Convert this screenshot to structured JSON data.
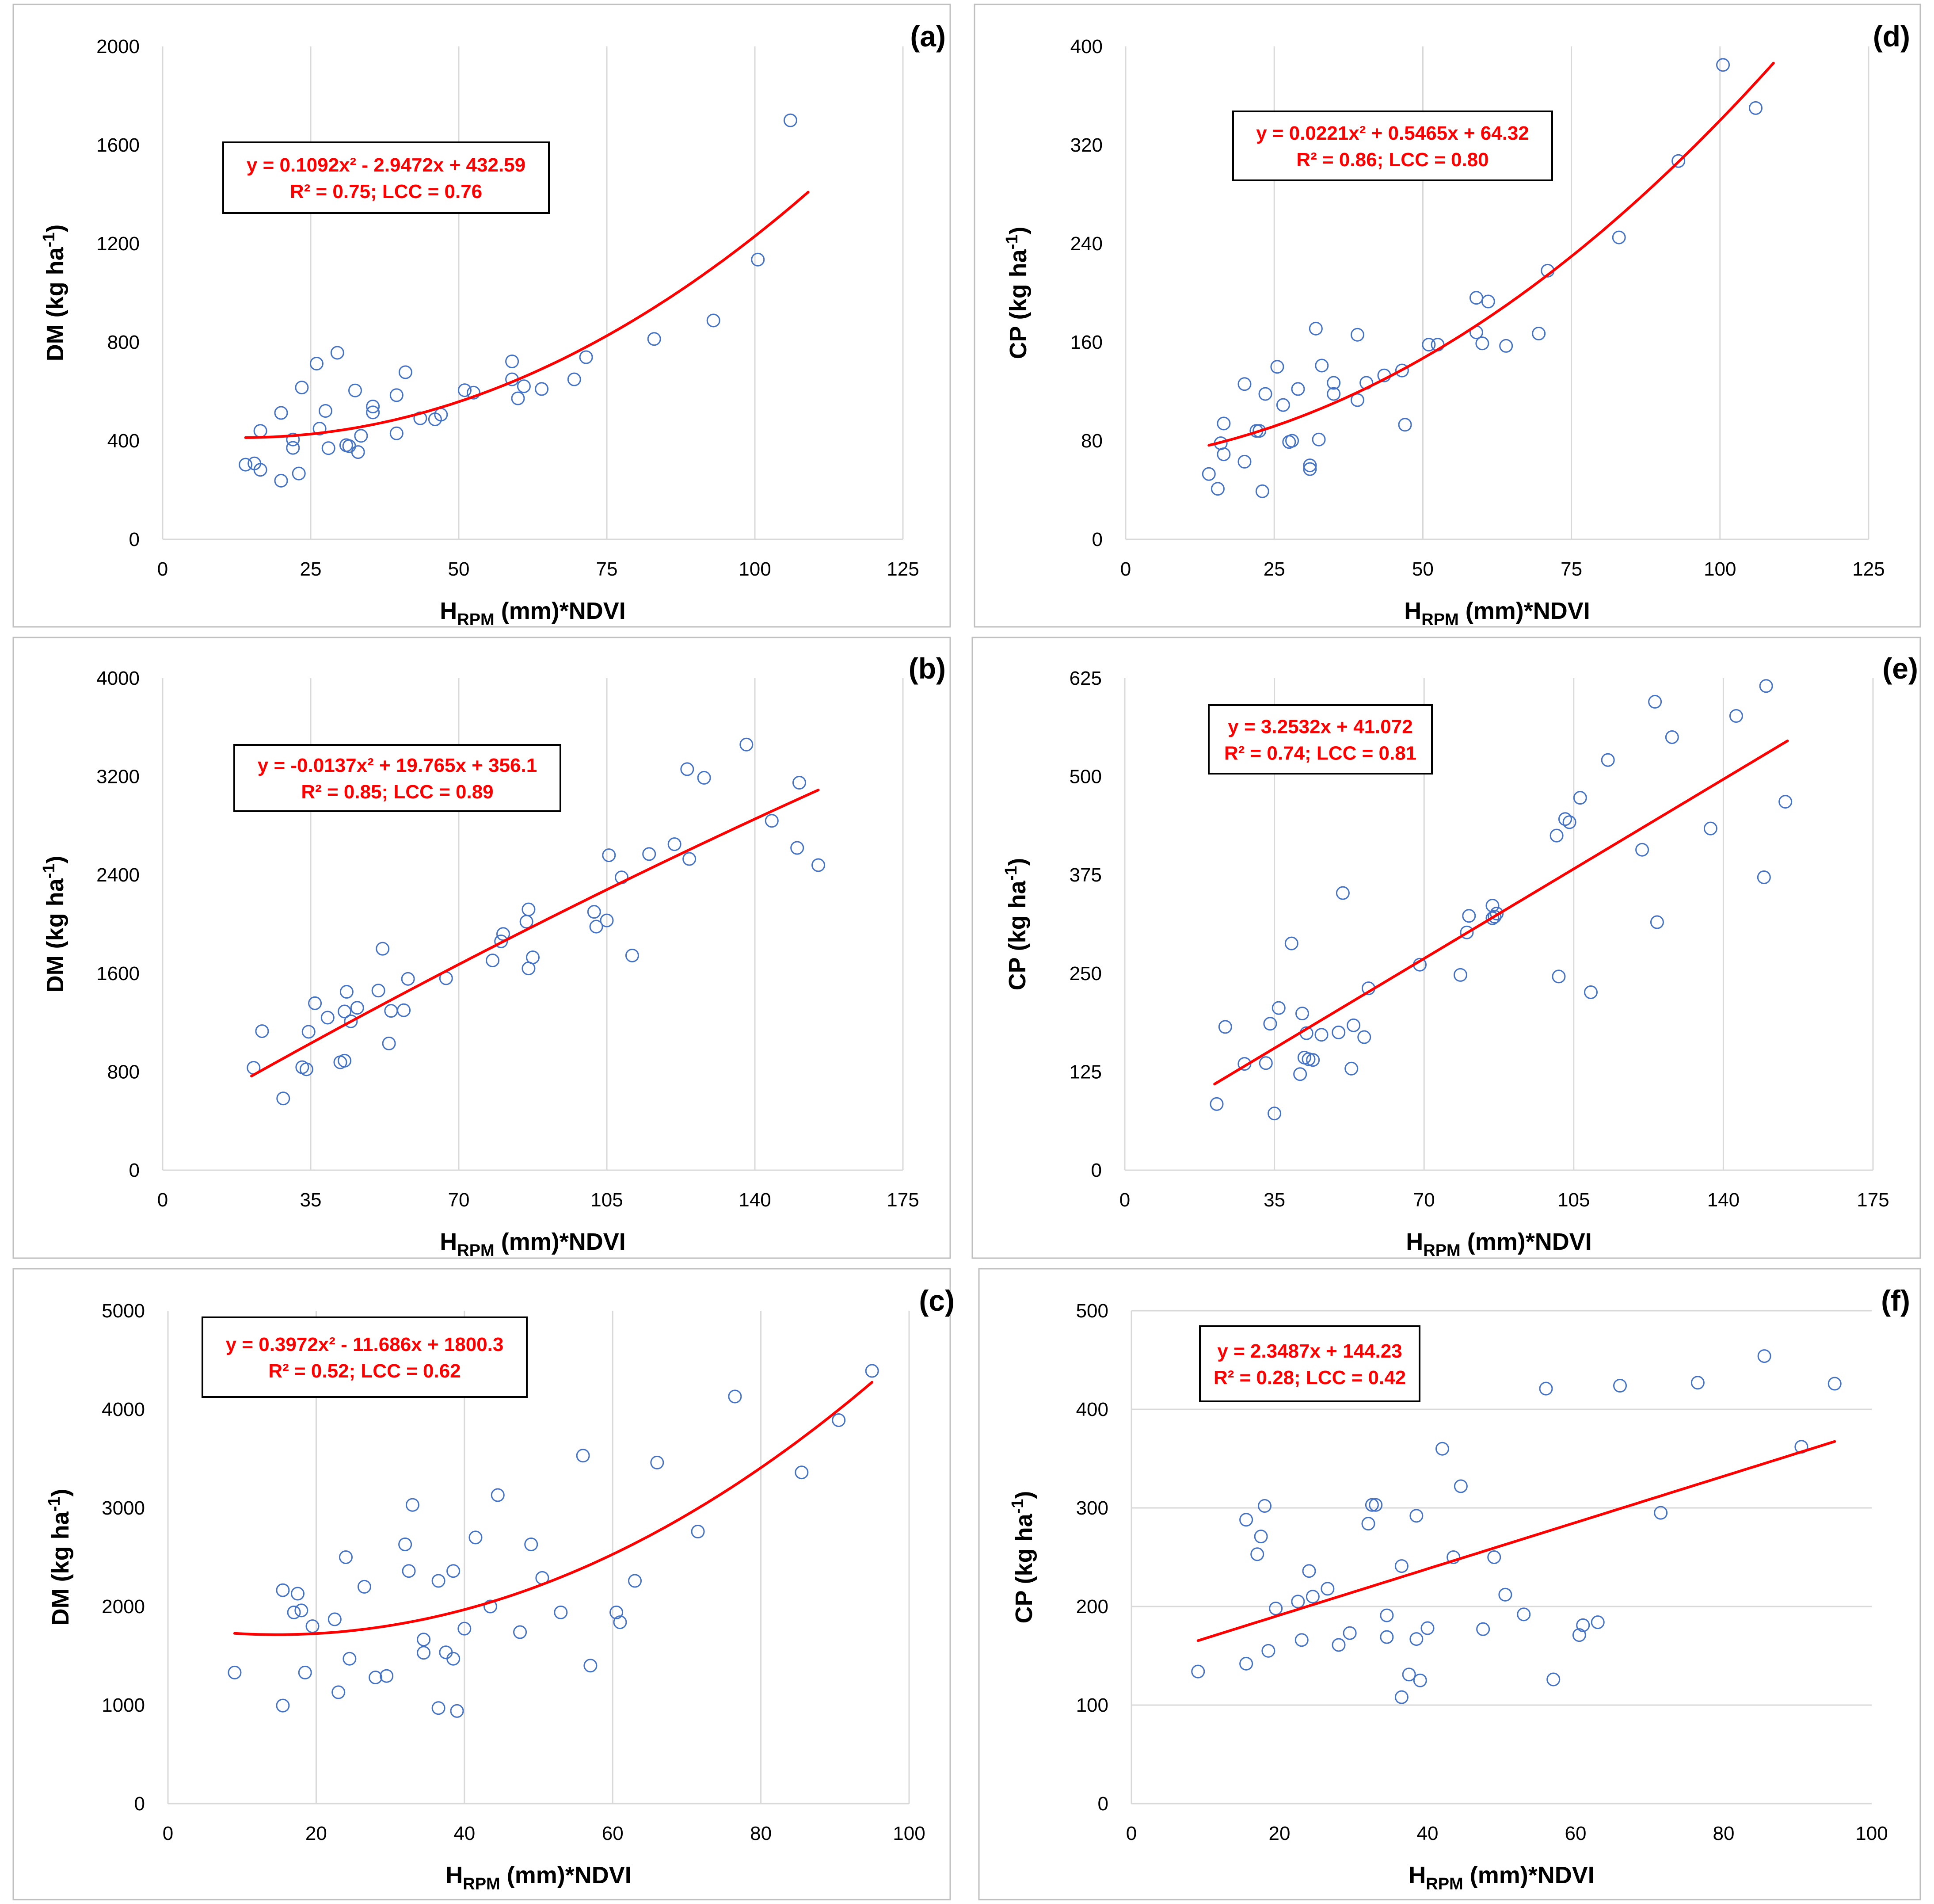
{
  "colors": {
    "points": "#4472c4",
    "fit": "#ff0000",
    "grid": "#d9d9d9",
    "frame": "#bfbfbf"
  },
  "chart_data": [
    {
      "id": "a",
      "type": "scatter",
      "panel_label": "(a)",
      "xlabel_main": "H",
      "xlabel_sub": "RPM",
      "xlabel_rest": " (mm)*NDVI",
      "ylabel": "DM (kg ha",
      "ylabel_sup": "-1",
      "ylabel_end": ")",
      "xlim": [
        0,
        125
      ],
      "xticks": [
        0,
        25,
        50,
        75,
        100,
        125
      ],
      "ylim": [
        0,
        2000
      ],
      "yticks": [
        0,
        400,
        800,
        1200,
        1600,
        2000
      ],
      "grid": "vertical",
      "fit": {
        "type": "poly2",
        "a": 0.1092,
        "b": -2.9472,
        "c": 432.59,
        "xrange": [
          14,
          109
        ]
      },
      "equation": "y = 0.1092x² - 2.9472x + 432.59",
      "stats": "R² = 0.75; LCC = 0.76",
      "x": [
        14,
        15.5,
        16.5,
        16.5,
        20,
        20,
        22,
        22,
        23,
        23.5,
        26,
        26.5,
        27.5,
        28,
        29.5,
        31,
        31.5,
        32.5,
        33,
        33.5,
        35.5,
        35.5,
        39.5,
        39.5,
        41,
        43.5,
        46,
        47,
        51,
        52.5,
        59,
        59,
        60,
        61,
        64,
        69.5,
        71.5,
        83,
        93,
        100.5,
        106
      ],
      "y": [
        303,
        308,
        282,
        440,
        238,
        513,
        371,
        405,
        267,
        616,
        713,
        449,
        521,
        370,
        757,
        382,
        378,
        604,
        354,
        420,
        515,
        539,
        430,
        585,
        678,
        491,
        487,
        506,
        605,
        595,
        649,
        722,
        572,
        621,
        610,
        649,
        739,
        813,
        888,
        1135,
        1700
      ]
    },
    {
      "id": "b",
      "type": "scatter",
      "panel_label": "(b)",
      "xlabel_main": "H",
      "xlabel_sub": "RPM",
      "xlabel_rest": " (mm)*NDVI",
      "ylabel": "DM (kg ha",
      "ylabel_sup": "-1",
      "ylabel_end": ")",
      "xlim": [
        0,
        175
      ],
      "xticks": [
        0,
        35,
        70,
        105,
        140,
        175
      ],
      "ylim": [
        0,
        4000
      ],
      "yticks": [
        0,
        800,
        1600,
        2400,
        3200,
        4000
      ],
      "grid": "vertical",
      "fit": {
        "type": "poly2",
        "a": -0.0137,
        "b": 19.765,
        "c": 356.1,
        "xrange": [
          21,
          155
        ]
      },
      "equation": "y = -0.0137x² + 19.765x + 356.1",
      "stats": "R² = 0.85; LCC = 0.89",
      "x": [
        21.5,
        23.5,
        28.5,
        33,
        34,
        34.5,
        36,
        39,
        42,
        43,
        43,
        43.5,
        44.5,
        46,
        51,
        52,
        53.5,
        54,
        57,
        58,
        67,
        78,
        80,
        80.5,
        86,
        86.5,
        86.5,
        87.5,
        102,
        102.5,
        105,
        105.5,
        108.5,
        111,
        115,
        121,
        124,
        124.5,
        128,
        138,
        144,
        150,
        150.5,
        155
      ],
      "y": [
        832,
        1130,
        583,
        837,
        820,
        1125,
        1357,
        1240,
        877,
        890,
        1290,
        1450,
        1210,
        1320,
        1460,
        1800,
        1030,
        1295,
        1300,
        1555,
        1560,
        1705,
        1860,
        1920,
        2020,
        2120,
        1640,
        1730,
        2100,
        1980,
        2030,
        2560,
        2380,
        1745,
        2570,
        2650,
        3260,
        2530,
        3190,
        3460,
        2840,
        2620,
        3150,
        2480
      ]
    },
    {
      "id": "c",
      "type": "scatter",
      "panel_label": "(c)",
      "xlabel_main": "H",
      "xlabel_sub": "RPM",
      "xlabel_rest": " (mm)*NDVI",
      "ylabel": "DM (kg ha",
      "ylabel_sup": "-1",
      "ylabel_end": ")",
      "xlim": [
        0,
        100
      ],
      "xticks": [
        0,
        20,
        40,
        60,
        80,
        100
      ],
      "ylim": [
        0,
        5000
      ],
      "yticks": [
        0,
        1000,
        2000,
        3000,
        4000,
        5000
      ],
      "grid": "vertical",
      "fit": {
        "type": "poly2",
        "a": 0.3972,
        "b": -11.686,
        "c": 1800.3,
        "xrange": [
          9,
          95
        ]
      },
      "equation": "y = 0.3972x² - 11.686x + 1800.3",
      "stats": "R² = 0.52; LCC = 0.62",
      "x": [
        9,
        15.5,
        15.5,
        17,
        17.5,
        18,
        18.5,
        19.5,
        22.5,
        23,
        24,
        24.5,
        26.5,
        28,
        29.5,
        32,
        32.5,
        33,
        34.5,
        34.5,
        36.5,
        36.5,
        37.5,
        38.5,
        38.5,
        39,
        40,
        41.5,
        43.5,
        44.5,
        47.5,
        49,
        50.5,
        53,
        56,
        57,
        60.5,
        61,
        63,
        66,
        71.5,
        76.5,
        85.5,
        90.5,
        95
      ],
      "y": [
        1330,
        995,
        2165,
        1940,
        2130,
        1960,
        1330,
        1800,
        1870,
        1130,
        2500,
        1470,
        2200,
        1280,
        1295,
        2630,
        2360,
        3030,
        1665,
        1530,
        2260,
        970,
        1535,
        1470,
        2360,
        940,
        1775,
        2700,
        2000,
        3130,
        1740,
        2630,
        2290,
        1940,
        3530,
        1400,
        1940,
        1840,
        2260,
        3460,
        2760,
        4130,
        3360,
        3890,
        4390
      ]
    },
    {
      "id": "d",
      "type": "scatter",
      "panel_label": "(d)",
      "xlabel_main": "H",
      "xlabel_sub": "RPM",
      "xlabel_rest": " (mm)*NDVI",
      "ylabel": "CP (kg ha",
      "ylabel_sup": "-1",
      "ylabel_end": ")",
      "xlim": [
        0,
        125
      ],
      "xticks": [
        0,
        25,
        50,
        75,
        100,
        125
      ],
      "ylim": [
        0,
        400
      ],
      "yticks": [
        0,
        80,
        160,
        240,
        320,
        400
      ],
      "grid": "vertical",
      "fit": {
        "type": "poly2",
        "a": 0.0221,
        "b": 0.5465,
        "c": 64.32,
        "xrange": [
          14,
          109
        ]
      },
      "equation": "y = 0.0221x² + 0.5465x + 64.32",
      "stats": "R² = 0.86; LCC = 0.80",
      "x": [
        14,
        15.5,
        16,
        16.5,
        16.5,
        20,
        20,
        22,
        22.5,
        23,
        23.5,
        25.5,
        26.5,
        27.5,
        28,
        29,
        31,
        31,
        32,
        32.5,
        33,
        35,
        35,
        39,
        39,
        40.5,
        43.5,
        46.5,
        47,
        51,
        52.5,
        59,
        59,
        60,
        61,
        64,
        69.5,
        71,
        83,
        93,
        100.5,
        106
      ],
      "y": [
        53,
        41,
        78,
        69,
        94,
        63,
        126,
        88,
        88,
        39,
        118,
        140,
        109,
        79,
        80,
        122,
        60,
        57,
        171,
        81,
        141,
        118,
        127,
        113,
        166,
        127,
        133,
        137,
        93,
        158,
        158,
        168,
        196,
        159,
        193,
        157,
        167,
        218,
        245,
        307,
        385,
        350
      ]
    },
    {
      "id": "e",
      "type": "scatter",
      "panel_label": "(e)",
      "xlabel_main": "H",
      "xlabel_sub": "RPM",
      "xlabel_rest": " (mm)*NDVI",
      "ylabel": "CP (kg ha",
      "ylabel_sup": "-1",
      "ylabel_end": ")",
      "xlim": [
        0,
        175
      ],
      "xticks": [
        0,
        35,
        70,
        105,
        140,
        175
      ],
      "ylim": [
        0,
        625
      ],
      "yticks": [
        0,
        125,
        250,
        375,
        500,
        625
      ],
      "grid": "vertical",
      "fit": {
        "type": "linear",
        "a": 3.2532,
        "b": 41.072,
        "xrange": [
          21,
          155
        ]
      },
      "equation": "y = 3.2532x + 41.072",
      "stats": "R² = 0.74; LCC = 0.81",
      "x": [
        21.5,
        23.5,
        28,
        33,
        34,
        35,
        36,
        39,
        41,
        41.5,
        42,
        42.5,
        43,
        44,
        46,
        50,
        51,
        53,
        53.5,
        56,
        57,
        69,
        78.5,
        80,
        80.5,
        86,
        86,
        86.5,
        87,
        101,
        101.5,
        103,
        104,
        106.5,
        109,
        113,
        121,
        124,
        124.5,
        128,
        137,
        143,
        149.5,
        150,
        154.5
      ],
      "y": [
        84,
        182,
        135,
        136,
        186,
        72,
        206,
        288,
        122,
        199,
        143,
        174,
        141,
        140,
        172,
        175,
        352,
        129,
        184,
        169,
        231,
        261,
        248,
        302,
        323,
        320,
        336,
        322,
        326,
        425,
        246,
        446,
        442,
        473,
        226,
        521,
        407,
        595,
        315,
        550,
        434,
        577,
        372,
        615,
        468
      ]
    },
    {
      "id": "f",
      "type": "scatter",
      "panel_label": "(f)",
      "xlabel_main": "H",
      "xlabel_sub": "RPM",
      "xlabel_rest": " (mm)*NDVI",
      "ylabel": "CP (kg ha",
      "ylabel_sup": "-1",
      "ylabel_end": ")",
      "xlim": [
        0,
        100
      ],
      "xticks": [
        0,
        20,
        40,
        60,
        80,
        100
      ],
      "ylim": [
        0,
        500
      ],
      "yticks": [
        0,
        100,
        200,
        300,
        400,
        500
      ],
      "grid": "horizontal",
      "fit": {
        "type": "linear",
        "a": 2.3487,
        "b": 144.23,
        "xrange": [
          9,
          95
        ]
      },
      "equation": "y = 2.3487x + 144.23",
      "stats": "R² = 0.28; LCC = 0.42",
      "x": [
        9,
        15.5,
        15.5,
        17,
        17.5,
        18,
        18.5,
        19.5,
        22.5,
        23,
        24,
        24.5,
        26.5,
        28,
        29.5,
        32,
        32.5,
        33,
        34.5,
        34.5,
        36.5,
        36.5,
        37.5,
        38.5,
        38.5,
        39,
        40,
        42,
        43.5,
        44.5,
        47.5,
        49,
        50.5,
        53,
        56,
        57,
        60.5,
        61,
        63,
        66,
        71.5,
        76.5,
        85.5,
        90.5,
        95
      ],
      "y": [
        134,
        142,
        288,
        253,
        271,
        302,
        155,
        198,
        205,
        166,
        236,
        210,
        218,
        161,
        173,
        284,
        303,
        303,
        191,
        169,
        241,
        108,
        131,
        167,
        292,
        125,
        178,
        360,
        250,
        322,
        177,
        250,
        212,
        192,
        421,
        126,
        171,
        181,
        184,
        424,
        295,
        427,
        454,
        362,
        426
      ]
    }
  ]
}
